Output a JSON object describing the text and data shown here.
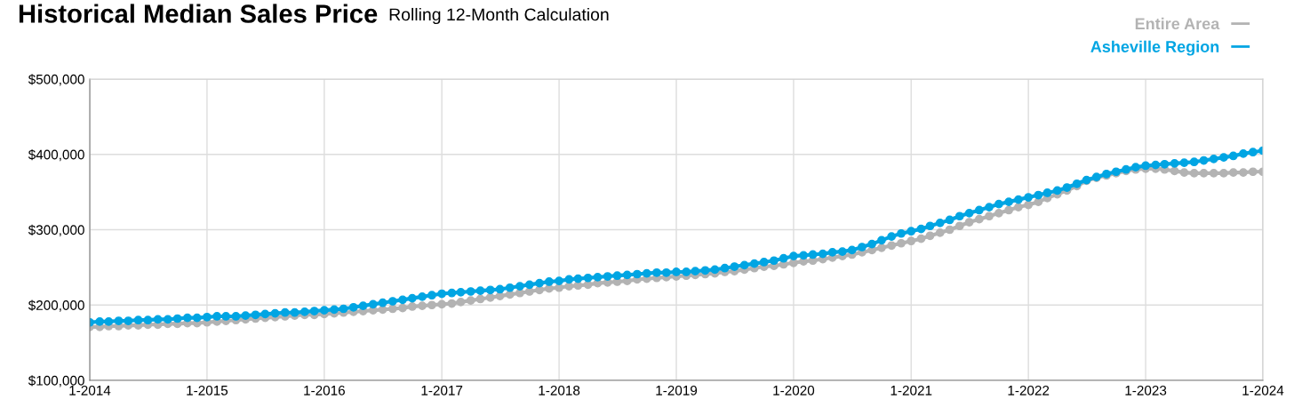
{
  "chart_data": {
    "type": "line",
    "title": "Historical Median Sales Price",
    "subtitle": "Rolling 12-Month Calculation",
    "x": [
      "2014-01",
      "2014-02",
      "2014-03",
      "2014-04",
      "2014-05",
      "2014-06",
      "2014-07",
      "2014-08",
      "2014-09",
      "2014-10",
      "2014-11",
      "2014-12",
      "2015-01",
      "2015-02",
      "2015-03",
      "2015-04",
      "2015-05",
      "2015-06",
      "2015-07",
      "2015-08",
      "2015-09",
      "2015-10",
      "2015-11",
      "2015-12",
      "2016-01",
      "2016-02",
      "2016-03",
      "2016-04",
      "2016-05",
      "2016-06",
      "2016-07",
      "2016-08",
      "2016-09",
      "2016-10",
      "2016-11",
      "2016-12",
      "2017-01",
      "2017-02",
      "2017-03",
      "2017-04",
      "2017-05",
      "2017-06",
      "2017-07",
      "2017-08",
      "2017-09",
      "2017-10",
      "2017-11",
      "2017-12",
      "2018-01",
      "2018-02",
      "2018-03",
      "2018-04",
      "2018-05",
      "2018-06",
      "2018-07",
      "2018-08",
      "2018-09",
      "2018-10",
      "2018-11",
      "2018-12",
      "2019-01",
      "2019-02",
      "2019-03",
      "2019-04",
      "2019-05",
      "2019-06",
      "2019-07",
      "2019-08",
      "2019-09",
      "2019-10",
      "2019-11",
      "2019-12",
      "2020-01",
      "2020-02",
      "2020-03",
      "2020-04",
      "2020-05",
      "2020-06",
      "2020-07",
      "2020-08",
      "2020-09",
      "2020-10",
      "2020-11",
      "2020-12",
      "2021-01",
      "2021-02",
      "2021-03",
      "2021-04",
      "2021-05",
      "2021-06",
      "2021-07",
      "2021-08",
      "2021-09",
      "2021-10",
      "2021-11",
      "2021-12",
      "2022-01",
      "2022-02",
      "2022-03",
      "2022-04",
      "2022-05",
      "2022-06",
      "2022-07",
      "2022-08",
      "2022-09",
      "2022-10",
      "2022-11",
      "2022-12",
      "2023-01",
      "2023-02",
      "2023-03",
      "2023-04",
      "2023-05",
      "2023-06",
      "2023-07",
      "2023-08",
      "2023-09",
      "2023-10",
      "2023-11",
      "2023-12",
      "2024-01"
    ],
    "series": [
      {
        "name": "Entire Area",
        "color": "#b3b3b3",
        "values": [
          171000,
          171000,
          172000,
          172000,
          173000,
          173000,
          174000,
          174000,
          175000,
          175000,
          176000,
          176000,
          177000,
          178000,
          179000,
          180000,
          181000,
          182000,
          183000,
          184000,
          185000,
          186000,
          187000,
          187000,
          188000,
          189000,
          190000,
          191000,
          192000,
          193000,
          194000,
          195000,
          196000,
          198000,
          199000,
          200000,
          201000,
          202000,
          204000,
          206000,
          208000,
          210000,
          212000,
          214000,
          216000,
          218000,
          220000,
          222000,
          223000,
          225000,
          226000,
          227000,
          229000,
          230000,
          231000,
          232000,
          234000,
          235000,
          236000,
          237000,
          238000,
          239000,
          240000,
          241000,
          242000,
          244000,
          245000,
          247000,
          249000,
          251000,
          252000,
          254000,
          256000,
          258000,
          259000,
          261000,
          263000,
          265000,
          267000,
          270000,
          273000,
          276000,
          279000,
          282000,
          285000,
          288000,
          292000,
          296000,
          300000,
          305000,
          310000,
          314000,
          318000,
          322000,
          326000,
          330000,
          333000,
          337000,
          342000,
          347000,
          352000,
          358000,
          365000,
          369000,
          372000,
          375000,
          378000,
          380000,
          381000,
          381000,
          380000,
          378000,
          376000,
          375000,
          375000,
          375000,
          375000,
          376000,
          376000,
          377000,
          377000
        ]
      },
      {
        "name": "Asheville Region",
        "color": "#00a5e3",
        "values": [
          177000,
          178000,
          178000,
          179000,
          179000,
          180000,
          180000,
          181000,
          181000,
          182000,
          183000,
          183000,
          184000,
          185000,
          185000,
          185000,
          186000,
          187000,
          188000,
          189000,
          190000,
          190000,
          191000,
          192000,
          193000,
          194000,
          195000,
          197000,
          199000,
          201000,
          203000,
          205000,
          207000,
          209000,
          211000,
          213000,
          215000,
          216000,
          217000,
          218000,
          219000,
          220000,
          221000,
          223000,
          225000,
          227000,
          229000,
          231000,
          232000,
          234000,
          235000,
          236000,
          237000,
          238000,
          239000,
          240000,
          241000,
          242000,
          243000,
          243000,
          244000,
          244000,
          245000,
          246000,
          247000,
          249000,
          251000,
          253000,
          255000,
          257000,
          259000,
          262000,
          265000,
          266000,
          267000,
          268000,
          270000,
          271000,
          273000,
          277000,
          281000,
          286000,
          291000,
          295000,
          298000,
          301000,
          305000,
          309000,
          313000,
          318000,
          322000,
          326000,
          330000,
          334000,
          337000,
          340000,
          343000,
          346000,
          349000,
          352000,
          356000,
          361000,
          366000,
          370000,
          374000,
          377000,
          380000,
          383000,
          385000,
          386000,
          387000,
          388000,
          389000,
          390000,
          392000,
          394000,
          396000,
          398000,
          401000,
          403000,
          405000
        ]
      }
    ],
    "xlim": [
      "2014-01",
      "2024-01"
    ],
    "xticks": [
      {
        "value": "2014-01",
        "label": "1-2014"
      },
      {
        "value": "2015-01",
        "label": "1-2015"
      },
      {
        "value": "2016-01",
        "label": "1-2016"
      },
      {
        "value": "2017-01",
        "label": "1-2017"
      },
      {
        "value": "2018-01",
        "label": "1-2018"
      },
      {
        "value": "2019-01",
        "label": "1-2019"
      },
      {
        "value": "2020-01",
        "label": "1-2020"
      },
      {
        "value": "2021-01",
        "label": "1-2021"
      },
      {
        "value": "2022-01",
        "label": "1-2022"
      },
      {
        "value": "2023-01",
        "label": "1-2023"
      },
      {
        "value": "2024-01",
        "label": "1-2024"
      }
    ],
    "ylim": [
      100000,
      500000
    ],
    "yticks": [
      {
        "value": 100000,
        "label": "$100,000"
      },
      {
        "value": 200000,
        "label": "$200,000"
      },
      {
        "value": 300000,
        "label": "$300,000"
      },
      {
        "value": 400000,
        "label": "$400,000"
      },
      {
        "value": 500000,
        "label": "$500,000"
      }
    ],
    "grid": true,
    "legend": "top right",
    "marker": "circle",
    "line_style": "solid"
  }
}
